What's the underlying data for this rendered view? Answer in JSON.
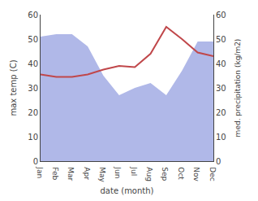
{
  "chart_data": {
    "type": "line",
    "xlabel": "date (month)",
    "ylabel": "max temp (C)",
    "y2label": "med. precipitation (kg/m2)",
    "categories": [
      "Jan",
      "Feb",
      "Mar",
      "Apr",
      "May",
      "Jun",
      "Jul",
      "Aug",
      "Sep",
      "Oct",
      "Nov",
      "Dec"
    ],
    "series": [
      {
        "type": "area",
        "axis": "y2",
        "color": "#b0b8e8",
        "values": [
          51,
          52,
          52,
          47,
          35,
          27,
          30,
          32,
          27,
          37,
          49,
          49
        ]
      },
      {
        "type": "line",
        "color": "#c0474a",
        "values": [
          35.5,
          34.5,
          34.5,
          35.5,
          37.5,
          39.0,
          38.5,
          44.0,
          55.0,
          50.0,
          44.5,
          43.0
        ]
      }
    ],
    "ylim": [
      0,
      60
    ],
    "yticks": [
      0,
      10,
      20,
      30,
      40,
      50,
      60
    ],
    "y2lim": [
      0,
      60
    ],
    "y2ticks": [
      0,
      10,
      20,
      30,
      40,
      50,
      60
    ],
    "grid": false
  }
}
